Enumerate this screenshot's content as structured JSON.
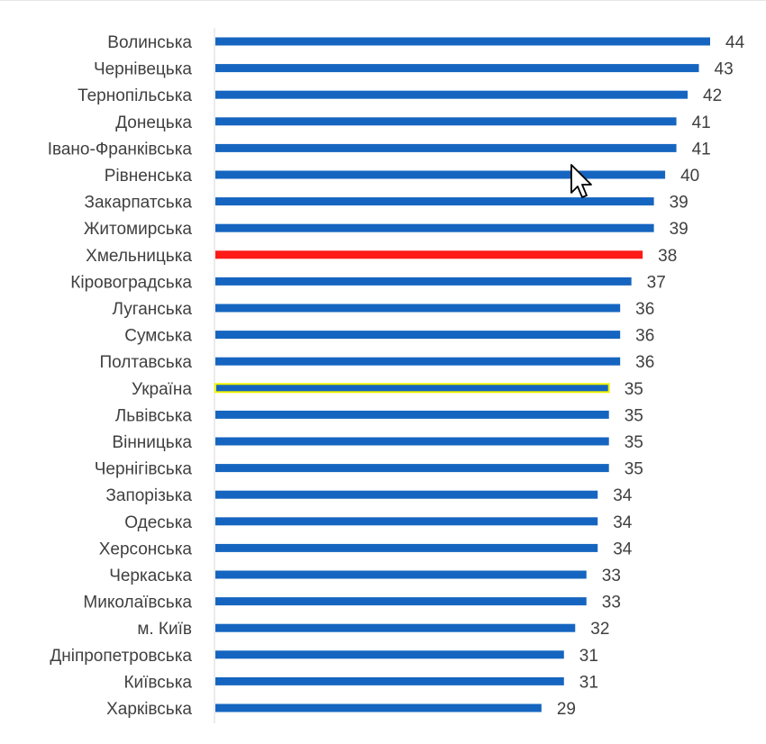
{
  "chart_data": {
    "type": "bar",
    "orientation": "horizontal",
    "title": "",
    "xlabel": "",
    "ylabel": "",
    "xlim": [
      0,
      45
    ],
    "grid": false,
    "legend": "none",
    "data_labels": true,
    "categories": [
      "Волинська",
      "Чернівецька",
      "Тернопільська",
      "Донецька",
      "Івано-Франківська",
      "Рівненська",
      "Закарпатська",
      "Житомирська",
      "Хмельницька",
      "Кіровоградська",
      "Луганська",
      "Сумська",
      "Полтавська",
      "Україна",
      "Львівська",
      "Вінницька",
      "Чернігівська",
      "Запорізька",
      "Одеська",
      "Херсонська",
      "Черкаська",
      "Миколаївська",
      "м. Київ",
      "Дніпропетровська",
      "Київська",
      "Харківська"
    ],
    "values": [
      44,
      43,
      42,
      41,
      41,
      40,
      39,
      39,
      38,
      37,
      36,
      36,
      36,
      35,
      35,
      35,
      35,
      34,
      34,
      34,
      33,
      33,
      32,
      31,
      31,
      29
    ],
    "colors": {
      "bar": "#1565c0",
      "axis": "#d9d9d9",
      "highlight_red": "#ff1a1a",
      "highlight_yellow_border": "#f2f200"
    },
    "highlights": {
      "Хмельницька": "red",
      "Україна": "yellow-outline"
    }
  },
  "overlay": {
    "cursor_icon": "arrow-cursor-icon"
  }
}
